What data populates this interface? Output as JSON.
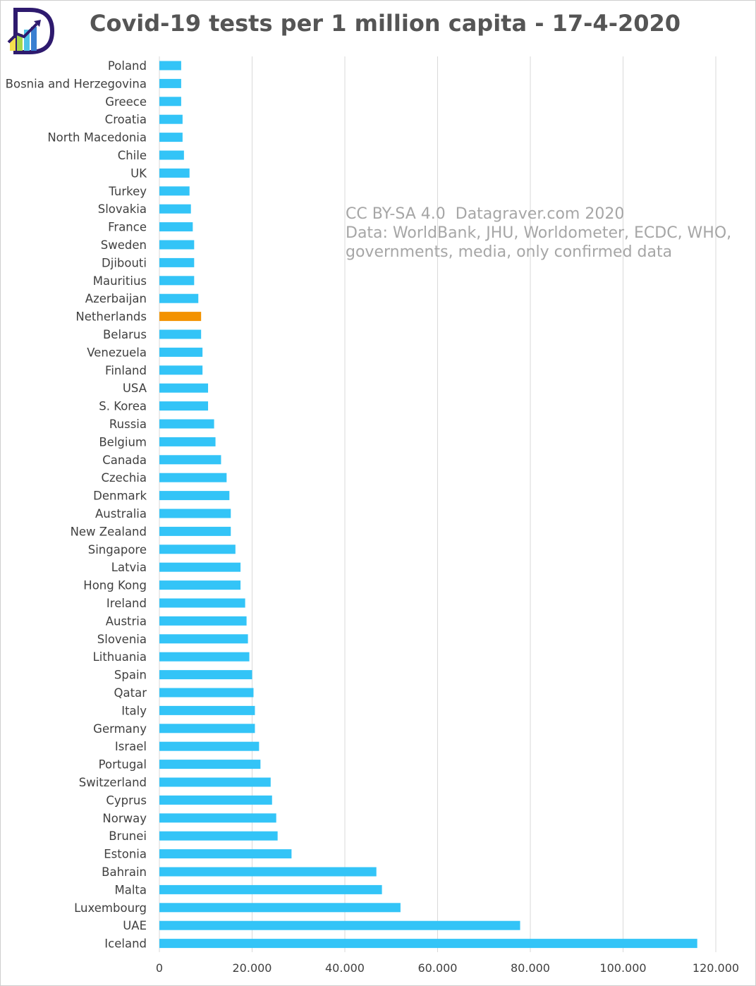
{
  "title": "Covid-19 tests per 1 million capita - 17-4-2020",
  "watermark": {
    "line1": "CC BY-SA 4.0  Datagraver.com 2020",
    "line2": "Data: WorldBank, JHU, Worldometer, ECDC, WHO,",
    "line3": "governments, media, only confirmed data"
  },
  "colors": {
    "bar": "#33c4f7",
    "highlight": "#f39200",
    "grid": "#d9d9d9"
  },
  "chart_data": {
    "type": "bar",
    "orientation": "horizontal",
    "title": "Covid-19 tests per 1 million capita - 17-4-2020",
    "xlim": [
      0,
      120000
    ],
    "grid": true,
    "x_ticks": [
      "0",
      "20.000",
      "40.000",
      "60.000",
      "80.000",
      "100.000",
      "120.000"
    ],
    "highlight": "Netherlands",
    "categories": [
      "Poland",
      "Bosnia and Herzegovina",
      "Greece",
      "Croatia",
      "North Macedonia",
      "Chile",
      "UK",
      "Turkey",
      "Slovakia",
      "France",
      "Sweden",
      "Djibouti",
      "Mauritius",
      "Azerbaijan",
      "Netherlands",
      "Belarus",
      "Venezuela",
      "Finland",
      "USA",
      "S. Korea",
      "Russia",
      "Belgium",
      "Canada",
      "Czechia",
      "Denmark",
      "Australia",
      "New Zealand",
      "Singapore",
      "Latvia",
      "Hong Kong",
      "Ireland",
      "Austria",
      "Slovenia",
      "Lithuania",
      "Spain",
      "Qatar",
      "Italy",
      "Germany",
      "Israel",
      "Portugal",
      "Switzerland",
      "Cyprus",
      "Norway",
      "Brunei",
      "Estonia",
      "Bahrain",
      "Malta",
      "Luxembourg",
      "UAE",
      "Iceland"
    ],
    "values": [
      4700,
      4700,
      4700,
      5000,
      5000,
      5300,
      6500,
      6500,
      6800,
      7200,
      7500,
      7500,
      7500,
      8400,
      9000,
      9000,
      9300,
      9300,
      10500,
      10500,
      11800,
      12100,
      13300,
      14500,
      15100,
      15400,
      15400,
      16400,
      17500,
      17500,
      18500,
      18800,
      19100,
      19400,
      20000,
      20300,
      20600,
      20600,
      21500,
      21800,
      24000,
      24300,
      25200,
      25500,
      28500,
      46800,
      48000,
      52000,
      77800,
      116000
    ]
  }
}
